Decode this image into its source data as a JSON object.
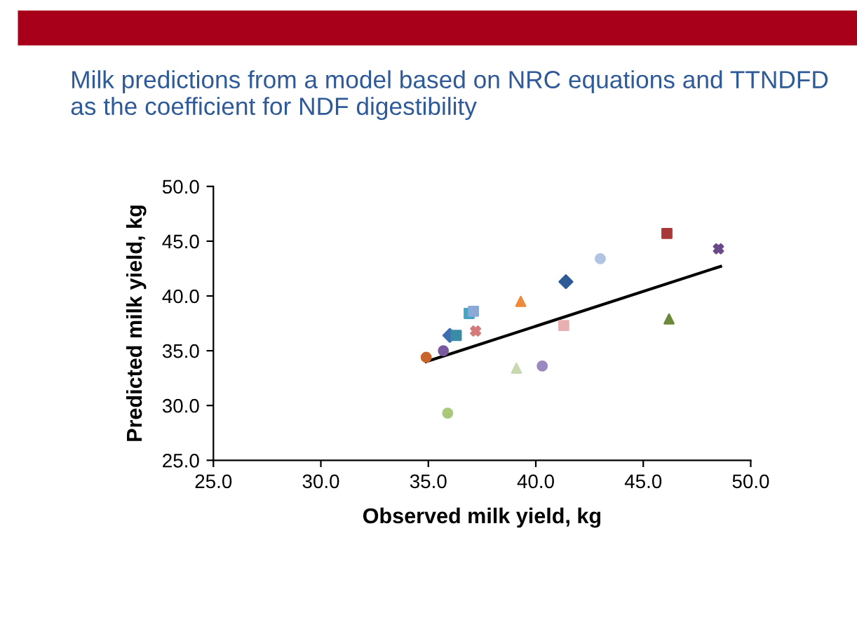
{
  "chart_data": {
    "type": "scatter",
    "title": "Milk predictions from a model based on NRC equations and TTNDFD as the coefficient for NDF digestibility",
    "xlabel": "Observed milk yield, kg",
    "ylabel": "Predicted milk yield, kg",
    "xlim": [
      25,
      50
    ],
    "ylim": [
      25,
      50
    ],
    "xticks": [
      {
        "value": 25,
        "label": "25.0"
      },
      {
        "value": 30,
        "label": "30.0"
      },
      {
        "value": 35,
        "label": "35.0"
      },
      {
        "value": 40,
        "label": "40.0"
      },
      {
        "value": 45,
        "label": "45.0"
      },
      {
        "value": 50,
        "label": "50.0"
      }
    ],
    "yticks": [
      {
        "value": 25,
        "label": "25.0"
      },
      {
        "value": 30,
        "label": "30.0"
      },
      {
        "value": 35,
        "label": "35.0"
      },
      {
        "value": 40,
        "label": "40.0"
      },
      {
        "value": 45,
        "label": "45.0"
      },
      {
        "value": 50,
        "label": "50.0"
      }
    ],
    "grid": false,
    "series": [
      {
        "color": "#c8652a",
        "marker": "circle",
        "x": [
          34.9
        ],
        "values": [
          34.4
        ]
      },
      {
        "color": "#7a5a9e",
        "marker": "circle",
        "x": [
          35.7
        ],
        "values": [
          35.0
        ]
      },
      {
        "color": "#3f6fb0",
        "marker": "diamond",
        "x": [
          36.0
        ],
        "values": [
          36.4
        ]
      },
      {
        "color": "#3a8aa8",
        "marker": "square",
        "x": [
          36.3
        ],
        "values": [
          36.4
        ]
      },
      {
        "color": "#45a5c4",
        "marker": "square",
        "x": [
          36.9
        ],
        "values": [
          38.4
        ]
      },
      {
        "color": "#8aa8d8",
        "marker": "square",
        "x": [
          37.1
        ],
        "values": [
          38.6
        ]
      },
      {
        "color": "#d47a7a",
        "marker": "cross",
        "x": [
          37.2
        ],
        "values": [
          36.8
        ]
      },
      {
        "color": "#ee8a3a",
        "marker": "triangle",
        "x": [
          39.3
        ],
        "values": [
          39.5
        ]
      },
      {
        "color": "#c8d8b0",
        "marker": "triangle",
        "x": [
          39.1
        ],
        "values": [
          33.4
        ]
      },
      {
        "color": "#9a88c0",
        "marker": "circle",
        "x": [
          40.3
        ],
        "values": [
          33.6
        ]
      },
      {
        "color": "#2f5a98",
        "marker": "diamond",
        "x": [
          41.4
        ],
        "values": [
          41.3
        ]
      },
      {
        "color": "#e8b0b0",
        "marker": "square",
        "x": [
          41.3
        ],
        "values": [
          37.3
        ]
      },
      {
        "color": "#b0c4e4",
        "marker": "circle",
        "x": [
          43.0
        ],
        "values": [
          43.4
        ]
      },
      {
        "color": "#a83838",
        "marker": "square",
        "x": [
          46.1
        ],
        "values": [
          45.7
        ]
      },
      {
        "color": "#6a8a3a",
        "marker": "triangle",
        "x": [
          46.2
        ],
        "values": [
          37.9
        ]
      },
      {
        "color": "#6a4a8a",
        "marker": "cross",
        "x": [
          48.5
        ],
        "values": [
          44.3
        ]
      },
      {
        "color": "#a8c87a",
        "marker": "circle",
        "x": [
          35.9
        ],
        "values": [
          29.3
        ]
      },
      {
        "type": "line",
        "color": "#000000",
        "marker": "none",
        "line_style": "solid",
        "x": [
          34.9,
          48.6
        ],
        "values": [
          34.0,
          42.7
        ]
      }
    ]
  }
}
